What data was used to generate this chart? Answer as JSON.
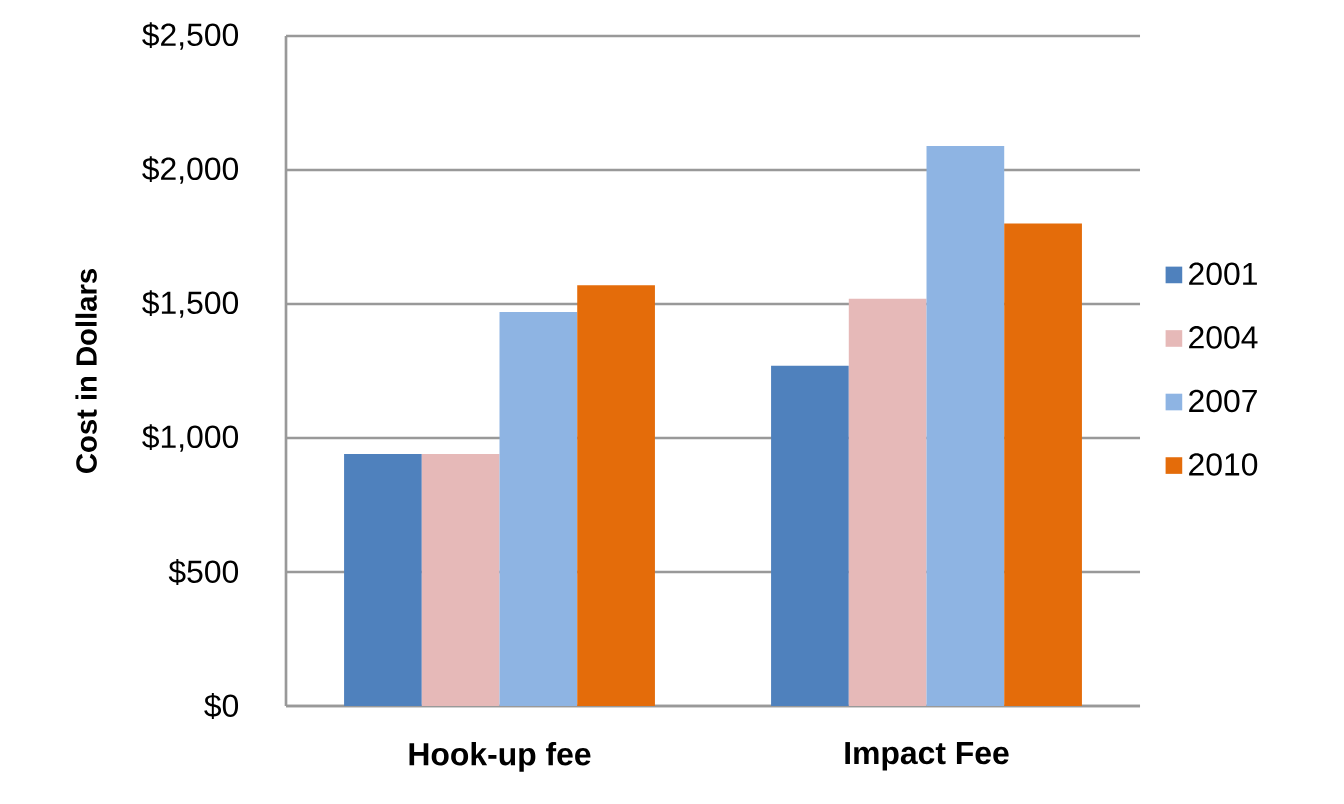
{
  "chart_data": {
    "type": "bar",
    "ylabel": "Cost in Dollars",
    "categories": [
      "Hook-up fee",
      "Impact Fee"
    ],
    "series": [
      {
        "name": "2001",
        "color": "#4f81bd",
        "values": [
          940,
          1270
        ]
      },
      {
        "name": "2004",
        "color": "#e6b9b8",
        "values": [
          940,
          1520
        ]
      },
      {
        "name": "2007",
        "color": "#8eb4e3",
        "values": [
          1470,
          2090
        ]
      },
      {
        "name": "2010",
        "color": "#e46c0a",
        "values": [
          1570,
          1800
        ]
      }
    ],
    "ylim": [
      0,
      2500
    ],
    "yticks": [
      {
        "value": 0,
        "label": "$0"
      },
      {
        "value": 500,
        "label": "$500"
      },
      {
        "value": 1000,
        "label": "$1,000"
      },
      {
        "value": 1500,
        "label": "$1,500"
      },
      {
        "value": 2000,
        "label": "$2,000"
      },
      {
        "value": 2500,
        "label": "$2,500"
      }
    ],
    "grid": "y",
    "legend": "right"
  }
}
